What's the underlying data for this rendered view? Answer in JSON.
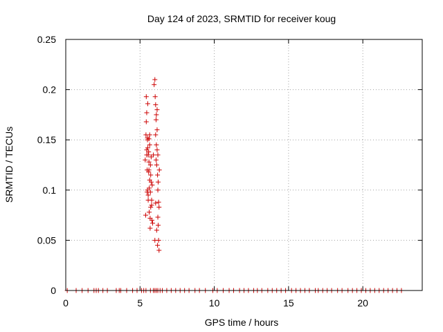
{
  "chart_data": {
    "type": "scatter",
    "title": "Day 124 of 2023, SRMTID for receiver koug",
    "xlabel": "GPS time / hours",
    "ylabel": "SRMTID / TECUs",
    "xlim": [
      0,
      24
    ],
    "ylim": [
      0,
      0.25
    ],
    "xticks": [
      0,
      5,
      10,
      15,
      20
    ],
    "xtick_labels": [
      "0",
      "5",
      "10",
      "15",
      "20"
    ],
    "yticks": [
      0,
      0.05,
      0.1,
      0.15,
      0.2,
      0.25
    ],
    "ytick_labels": [
      "0",
      "0.05",
      "0.1",
      "0.15",
      "0.2",
      "0.25"
    ],
    "grid": true,
    "marker": "plus",
    "color": "#cc0000",
    "series": [
      {
        "x": [
          5.35,
          5.4,
          5.42,
          5.45,
          5.45,
          5.48,
          5.5,
          5.5,
          5.52,
          5.55,
          5.55,
          5.58,
          5.6,
          5.6,
          5.62,
          5.65,
          5.65,
          5.68,
          5.7,
          5.7,
          5.72,
          5.75,
          5.75,
          5.78,
          5.8,
          5.85,
          5.9,
          5.95,
          6.0,
          6.02,
          6.05,
          6.05,
          6.08,
          6.1,
          6.1,
          6.12,
          6.15,
          6.15,
          6.18,
          6.2,
          6.2,
          6.22,
          6.25,
          6.25,
          6.28,
          6.3,
          5.38,
          5.42,
          5.48,
          5.52,
          5.58,
          5.62,
          5.68,
          5.72,
          5.78,
          5.82,
          6.0,
          6.05,
          6.08,
          6.12,
          6.18,
          6.22,
          6.28,
          5.5,
          5.55,
          5.6,
          6.15,
          6.2,
          5.45,
          5.65
        ],
        "y": [
          0.13,
          0.155,
          0.193,
          0.177,
          0.14,
          0.12,
          0.1,
          0.152,
          0.186,
          0.135,
          0.095,
          0.118,
          0.151,
          0.128,
          0.078,
          0.145,
          0.11,
          0.062,
          0.125,
          0.098,
          0.083,
          0.133,
          0.108,
          0.085,
          0.07,
          0.067,
          0.135,
          0.205,
          0.21,
          0.193,
          0.185,
          0.155,
          0.17,
          0.175,
          0.145,
          0.125,
          0.16,
          0.18,
          0.115,
          0.1,
          0.135,
          0.065,
          0.05,
          0.088,
          0.04,
          0.12,
          0.075,
          0.168,
          0.098,
          0.142,
          0.138,
          0.102,
          0.072,
          0.115,
          0.09,
          0.105,
          0.05,
          0.087,
          0.13,
          0.06,
          0.045,
          0.108,
          0.083,
          0.15,
          0.09,
          0.12,
          0.14,
          0.073,
          0.135,
          0.155
        ]
      },
      {
        "x": [
          0.1,
          0.7,
          1.1,
          1.5,
          1.9,
          2.05,
          2.2,
          2.5,
          2.8,
          3.4,
          3.6,
          3.7,
          4.1,
          4.5,
          4.8,
          5.1,
          5.25,
          5.4,
          5.7,
          5.9,
          6.0,
          6.1,
          6.2,
          6.35,
          6.5,
          6.8,
          7.1,
          7.4,
          7.7,
          8.0,
          8.3,
          8.7,
          9.0,
          9.4,
          9.9,
          10.2,
          10.6,
          11.0,
          11.3,
          11.7,
          12.0,
          12.3,
          12.65,
          12.9,
          13.2,
          13.6,
          13.9,
          14.2,
          14.5,
          14.8,
          15.2,
          15.5,
          15.8,
          16.1,
          16.4,
          16.8,
          17.0,
          17.3,
          17.6,
          17.9,
          18.3,
          18.6,
          19.0,
          19.3,
          19.6,
          19.9,
          20.2,
          20.5,
          20.8,
          21.1,
          21.4,
          21.7,
          22.0,
          22.3,
          22.6
        ],
        "y": [
          0,
          0,
          0,
          0,
          0,
          0,
          0,
          0,
          0,
          0,
          0,
          0,
          0,
          0,
          0,
          0,
          0,
          0,
          0,
          0,
          0,
          0,
          0,
          0,
          0,
          0,
          0,
          0,
          0,
          0,
          0,
          0,
          0,
          0,
          0,
          0,
          0,
          0,
          0,
          0,
          0,
          0,
          0,
          0,
          0,
          0,
          0,
          0,
          0,
          0,
          0,
          0,
          0,
          0,
          0,
          0,
          0,
          0,
          0,
          0,
          0,
          0,
          0,
          0,
          0,
          0,
          0,
          0,
          0,
          0,
          0,
          0,
          0,
          0,
          0
        ]
      }
    ]
  }
}
